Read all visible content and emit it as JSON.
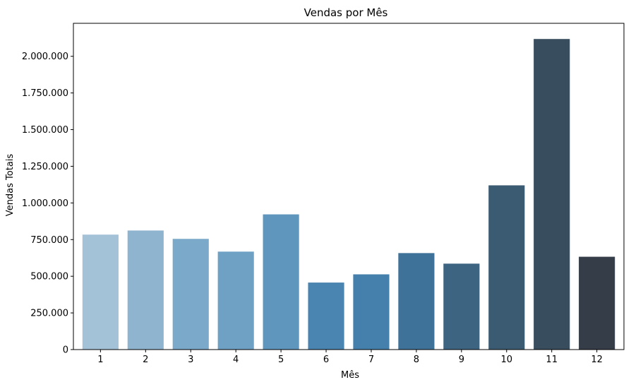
{
  "chart_data": {
    "type": "bar",
    "title": "Vendas por Mês",
    "xlabel": "Mês",
    "ylabel": "Vendas Totais",
    "categories": [
      "1",
      "2",
      "3",
      "4",
      "5",
      "6",
      "7",
      "8",
      "9",
      "10",
      "11",
      "12"
    ],
    "values": [
      784000,
      812000,
      755000,
      668000,
      922000,
      457000,
      513000,
      658000,
      586000,
      1120000,
      2118000,
      633000
    ],
    "ylim": [
      0,
      2225000
    ],
    "yticks": [
      0,
      250000,
      500000,
      750000,
      1000000,
      1250000,
      1500000,
      1750000,
      2000000
    ],
    "ytick_labels": [
      "0",
      "250.000",
      "500.000",
      "750.000",
      "1.000.000",
      "1.250.000",
      "1.500.000",
      "1.750.000",
      "2.000.000"
    ],
    "colors": [
      "#a3c2d7",
      "#8fb4d0",
      "#7ba9c9",
      "#6fa1c4",
      "#5f96bd",
      "#4a84b0",
      "#4580ad",
      "#3f7298",
      "#3d6582",
      "#3b5b72",
      "#384d5d",
      "#353d48"
    ],
    "grid": false,
    "legend": "none"
  }
}
